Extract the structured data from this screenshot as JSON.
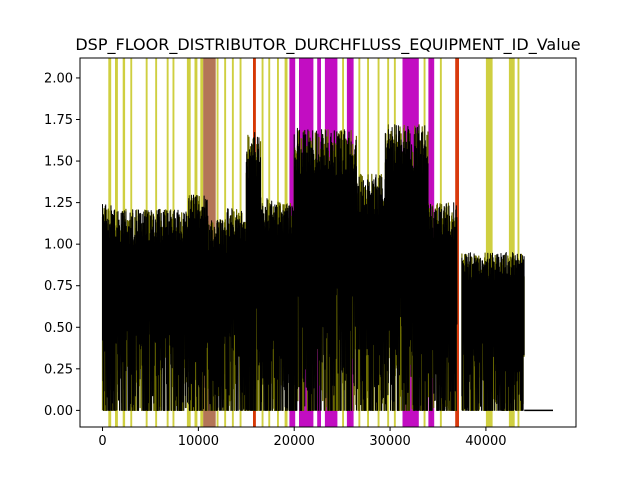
{
  "chart_data": {
    "type": "line",
    "title": "DSP_FLOOR_DISTRIBUTOR_DURCHFLUSS_EQUIPMENT_ID_Value",
    "xlabel": "",
    "ylabel": "",
    "xlim": [
      -2350,
      49400
    ],
    "ylim": [
      -0.1,
      2.12
    ],
    "x_ticks": [
      0,
      10000,
      20000,
      30000,
      40000
    ],
    "x_tick_labels": [
      "0",
      "10000",
      "20000",
      "30000",
      "40000"
    ],
    "y_ticks": [
      0.0,
      0.25,
      0.5,
      0.75,
      1.0,
      1.25,
      1.5,
      1.75,
      2.0
    ],
    "y_tick_labels": [
      "0.00",
      "0.25",
      "0.50",
      "0.75",
      "1.00",
      "1.25",
      "1.50",
      "1.75",
      "2.00"
    ],
    "grid": false,
    "colors": {
      "signal": "#000000",
      "signal_olive": "#6b6b00",
      "yellow_band": "#bfbf00",
      "magenta_band": "#bf00bf",
      "red_band": "#d62f00",
      "brown_band": "#a0522d"
    },
    "signal_segments": [
      {
        "x": [
          0,
          1500
        ],
        "peak": 1.24
      },
      {
        "x": [
          1500,
          9000
        ],
        "peak": 1.21
      },
      {
        "x": [
          9000,
          11000
        ],
        "peak": 1.3
      },
      {
        "x": [
          11000,
          13000
        ],
        "peak": 1.15
      },
      {
        "x": [
          13000,
          15000
        ],
        "peak": 1.22
      },
      {
        "x": [
          15000,
          16500
        ],
        "peak": 1.68
      },
      {
        "x": [
          16500,
          18500
        ],
        "peak": 1.28
      },
      {
        "x": [
          18500,
          20000
        ],
        "peak": 1.25
      },
      {
        "x": [
          20000,
          26500
        ],
        "peak": 1.7
      },
      {
        "x": [
          26500,
          29500
        ],
        "peak": 1.42
      },
      {
        "x": [
          29500,
          34000
        ],
        "peak": 1.72
      },
      {
        "x": [
          34000,
          37000
        ],
        "peak": 1.25
      },
      {
        "x": [
          37500,
          44000
        ],
        "peak": 0.95
      }
    ],
    "flat_tail": {
      "x": [
        44000,
        47000
      ],
      "value": 0.0
    },
    "event_bands": [
      {
        "color": "yellow",
        "x": [
          600,
          900
        ]
      },
      {
        "color": "yellow",
        "x": [
          1300,
          1600
        ]
      },
      {
        "color": "yellow",
        "x": [
          2100,
          2350
        ]
      },
      {
        "color": "yellow",
        "x": [
          2900,
          3100
        ]
      },
      {
        "color": "yellow",
        "x": [
          4500,
          4700
        ]
      },
      {
        "color": "yellow",
        "x": [
          5500,
          5700
        ]
      },
      {
        "color": "yellow",
        "x": [
          6700,
          6900
        ]
      },
      {
        "color": "yellow",
        "x": [
          7300,
          7500
        ]
      },
      {
        "color": "yellow",
        "x": [
          8800,
          9200
        ]
      },
      {
        "color": "yellow",
        "x": [
          9600,
          9900
        ]
      },
      {
        "color": "yellow",
        "x": [
          10200,
          10500
        ]
      },
      {
        "color": "yellow",
        "x": [
          11900,
          12100
        ]
      },
      {
        "color": "yellow",
        "x": [
          12700,
          12900
        ]
      },
      {
        "color": "yellow",
        "x": [
          13500,
          13700
        ]
      },
      {
        "color": "yellow",
        "x": [
          14300,
          14500
        ]
      },
      {
        "color": "yellow",
        "x": [
          15700,
          15900
        ]
      },
      {
        "color": "yellow",
        "x": [
          16600,
          16800
        ]
      },
      {
        "color": "yellow",
        "x": [
          17300,
          17500
        ]
      },
      {
        "color": "yellow",
        "x": [
          18200,
          18400
        ]
      },
      {
        "color": "yellow",
        "x": [
          19000,
          19300
        ]
      },
      {
        "color": "yellow",
        "x": [
          25000,
          25200
        ]
      },
      {
        "color": "yellow",
        "x": [
          25700,
          25900
        ]
      },
      {
        "color": "yellow",
        "x": [
          26700,
          26900
        ]
      },
      {
        "color": "yellow",
        "x": [
          27600,
          27800
        ]
      },
      {
        "color": "yellow",
        "x": [
          28700,
          28900
        ]
      },
      {
        "color": "yellow",
        "x": [
          29700,
          29900
        ]
      },
      {
        "color": "yellow",
        "x": [
          30400,
          30600
        ]
      },
      {
        "color": "yellow",
        "x": [
          33500,
          33700
        ]
      },
      {
        "color": "yellow",
        "x": [
          34200,
          34400
        ]
      },
      {
        "color": "yellow",
        "x": [
          35200,
          35400
        ]
      },
      {
        "color": "yellow",
        "x": [
          40000,
          40700
        ]
      },
      {
        "color": "yellow",
        "x": [
          42400,
          43000
        ]
      },
      {
        "color": "yellow",
        "x": [
          43300,
          43500
        ]
      },
      {
        "color": "brown",
        "x": [
          10500,
          11800
        ]
      },
      {
        "color": "red",
        "x": [
          15700,
          16000
        ]
      },
      {
        "color": "red",
        "x": [
          36800,
          37200
        ]
      },
      {
        "color": "magenta",
        "x": [
          19500,
          20100
        ]
      },
      {
        "color": "magenta",
        "x": [
          20500,
          22000
        ]
      },
      {
        "color": "magenta",
        "x": [
          22400,
          22800
        ]
      },
      {
        "color": "magenta",
        "x": [
          23200,
          24500
        ]
      },
      {
        "color": "magenta",
        "x": [
          25500,
          26200
        ]
      },
      {
        "color": "magenta",
        "x": [
          31300,
          33000
        ]
      },
      {
        "color": "magenta",
        "x": [
          34000,
          34600
        ]
      }
    ]
  }
}
